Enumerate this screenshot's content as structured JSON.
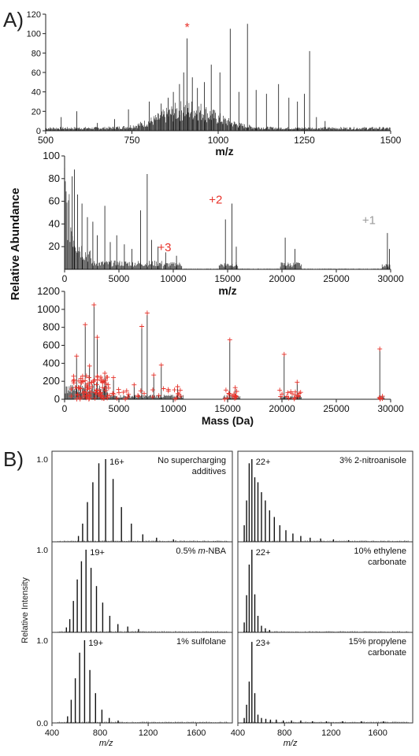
{
  "panels": {
    "A_label": "A)",
    "B_label": "B)"
  },
  "shared": {
    "ylabel_A": "Relative Abundance",
    "ylabel_B": "Relative Intensity"
  },
  "colors": {
    "trace": "#111111",
    "annotation_red": "#e8322a",
    "annotation_gray": "#999999",
    "cross_red": "#e8322a"
  },
  "chart_data": [
    {
      "id": "A1",
      "type": "line",
      "title": "",
      "xlabel": "m/z",
      "ylabel": "",
      "xlim": [
        500,
        1500
      ],
      "ylim": [
        0,
        120
      ],
      "xticks": [
        "500",
        "750",
        "1000",
        "1250",
        "1500"
      ],
      "yticks": [
        "0",
        "20",
        "40",
        "60",
        "80",
        "100",
        "120"
      ],
      "peaks": [
        [
          545,
          14
        ],
        [
          590,
          20
        ],
        [
          650,
          8
        ],
        [
          700,
          12
        ],
        [
          740,
          22
        ],
        [
          800,
          30
        ],
        [
          835,
          28
        ],
        [
          855,
          34
        ],
        [
          870,
          40
        ],
        [
          888,
          48
        ],
        [
          900,
          60
        ],
        [
          910,
          95
        ],
        [
          925,
          55
        ],
        [
          940,
          44
        ],
        [
          960,
          50
        ],
        [
          980,
          68
        ],
        [
          1005,
          60
        ],
        [
          1035,
          105
        ],
        [
          1060,
          40
        ],
        [
          1085,
          110
        ],
        [
          1110,
          42
        ],
        [
          1140,
          38
        ],
        [
          1175,
          48
        ],
        [
          1205,
          34
        ],
        [
          1230,
          30
        ],
        [
          1250,
          38
        ],
        [
          1265,
          82
        ],
        [
          1285,
          14
        ],
        [
          1310,
          10
        ]
      ],
      "annotations": [
        {
          "label": "*",
          "x": 910,
          "y": 102,
          "color": "red"
        }
      ]
    },
    {
      "id": "A2",
      "type": "line",
      "title": "",
      "xlabel": "m/z",
      "ylabel": "Relative Abundance",
      "xlim": [
        0,
        30000
      ],
      "ylim": [
        0,
        100
      ],
      "xticks": [
        "0",
        "5000",
        "10000",
        "15000",
        "20000",
        "25000",
        "30000"
      ],
      "yticks": [
        "20",
        "40",
        "60",
        "80",
        "100"
      ],
      "peaks": [
        [
          700,
          82
        ],
        [
          900,
          88
        ],
        [
          1200,
          66
        ],
        [
          1600,
          58
        ],
        [
          2100,
          46
        ],
        [
          2600,
          42
        ],
        [
          3000,
          30
        ],
        [
          3700,
          56
        ],
        [
          4200,
          24
        ],
        [
          4800,
          30
        ],
        [
          5500,
          22
        ],
        [
          6200,
          18
        ],
        [
          7000,
          52
        ],
        [
          7600,
          84
        ],
        [
          8000,
          26
        ],
        [
          8600,
          20
        ],
        [
          9300,
          15
        ],
        [
          10300,
          12
        ],
        [
          14800,
          44
        ],
        [
          15400,
          58
        ],
        [
          15800,
          20
        ],
        [
          20300,
          28
        ],
        [
          21200,
          18
        ],
        [
          29700,
          32
        ],
        [
          29900,
          18
        ]
      ],
      "annotations": [
        {
          "label": "+3",
          "x": 9200,
          "y": 16,
          "color": "red"
        },
        {
          "label": "+2",
          "x": 13900,
          "y": 58,
          "color": "red"
        },
        {
          "label": "+1",
          "x": 28000,
          "y": 40,
          "color": "gray"
        }
      ]
    },
    {
      "id": "A3",
      "type": "line",
      "title": "",
      "xlabel": "Mass (Da)",
      "ylabel": "",
      "xlim": [
        0,
        30000
      ],
      "ylim": [
        0,
        1200
      ],
      "xticks": [
        "0",
        "5000",
        "10000",
        "15000",
        "20000",
        "25000",
        "30000"
      ],
      "yticks": [
        "0",
        "200",
        "400",
        "600",
        "800",
        "1000",
        "1200"
      ],
      "peaks": [
        [
          1100,
          480
        ],
        [
          1500,
          230
        ],
        [
          1900,
          830
        ],
        [
          2300,
          370
        ],
        [
          2700,
          1050
        ],
        [
          3000,
          690
        ],
        [
          3700,
          290
        ],
        [
          4500,
          240
        ],
        [
          6400,
          160
        ],
        [
          7100,
          810
        ],
        [
          7600,
          960
        ],
        [
          8200,
          270
        ],
        [
          8900,
          380
        ],
        [
          10400,
          140
        ],
        [
          15200,
          660
        ],
        [
          15700,
          130
        ],
        [
          20200,
          500
        ],
        [
          21400,
          190
        ],
        [
          29000,
          560
        ]
      ],
      "annotations": []
    },
    {
      "id": "B1",
      "type": "bar",
      "xlabel": "",
      "ylabel": "",
      "xlim": [
        400,
        1900
      ],
      "ylim": [
        0,
        1.0
      ],
      "yticks": [
        "1.0"
      ],
      "charge_label": "16+",
      "condition": [
        "No supercharging",
        "additives"
      ],
      "peaks": [
        [
          620,
          0.07
        ],
        [
          655,
          0.22
        ],
        [
          695,
          0.48
        ],
        [
          740,
          0.72
        ],
        [
          790,
          0.95
        ],
        [
          846,
          1.0
        ],
        [
          908,
          0.76
        ],
        [
          978,
          0.42
        ],
        [
          1060,
          0.22
        ],
        [
          1155,
          0.09
        ],
        [
          1270,
          0.05
        ],
        [
          1410,
          0.03
        ]
      ]
    },
    {
      "id": "B2",
      "type": "bar",
      "xlabel": "",
      "ylabel": "",
      "xlim": [
        400,
        1900
      ],
      "ylim": [
        0,
        1.0
      ],
      "yticks": [
        "1.0"
      ],
      "charge_label": "19+",
      "condition_prefix": "0.5% ",
      "condition_italic": "m",
      "condition_suffix": "-NBA",
      "peaks": [
        [
          520,
          0.06
        ],
        [
          548,
          0.16
        ],
        [
          578,
          0.38
        ],
        [
          610,
          0.64
        ],
        [
          645,
          0.86
        ],
        [
          683,
          1.0
        ],
        [
          725,
          0.78
        ],
        [
          770,
          0.56
        ],
        [
          822,
          0.36
        ],
        [
          881,
          0.2
        ],
        [
          948,
          0.1
        ],
        [
          1030,
          0.07
        ],
        [
          1120,
          0.04
        ]
      ]
    },
    {
      "id": "B3",
      "type": "bar",
      "xlabel": "m/z",
      "ylabel": "",
      "xlim": [
        400,
        1900
      ],
      "ylim": [
        0,
        1.0
      ],
      "yticks": [
        "1.0",
        "0.0"
      ],
      "xticks": [
        "400",
        "800",
        "1200",
        "1600"
      ],
      "charge_label": "19+",
      "condition": [
        "1% sulfolane"
      ],
      "peaks": [
        [
          530,
          0.08
        ],
        [
          560,
          0.28
        ],
        [
          594,
          0.54
        ],
        [
          630,
          0.85
        ],
        [
          671,
          1.0
        ],
        [
          715,
          0.64
        ],
        [
          762,
          0.36
        ],
        [
          815,
          0.16
        ],
        [
          876,
          0.06
        ],
        [
          950,
          0.03
        ]
      ]
    },
    {
      "id": "B4",
      "type": "bar",
      "xlabel": "",
      "ylabel": "",
      "xlim": [
        400,
        1900
      ],
      "ylim": [
        0,
        1.0
      ],
      "charge_label": "22+",
      "condition": [
        "3% 2-nitroanisole"
      ],
      "peaks": [
        [
          455,
          0.2
        ],
        [
          475,
          0.5
        ],
        [
          497,
          0.95
        ],
        [
          520,
          1.0
        ],
        [
          545,
          0.78
        ],
        [
          572,
          0.72
        ],
        [
          603,
          0.6
        ],
        [
          636,
          0.5
        ],
        [
          672,
          0.38
        ],
        [
          713,
          0.3
        ],
        [
          760,
          0.2
        ],
        [
          812,
          0.14
        ],
        [
          872,
          0.1
        ],
        [
          940,
          0.07
        ],
        [
          1020,
          0.05
        ],
        [
          1110,
          0.04
        ],
        [
          1220,
          0.03
        ],
        [
          1350,
          0.02
        ]
      ]
    },
    {
      "id": "B5",
      "type": "bar",
      "xlabel": "",
      "ylabel": "",
      "xlim": [
        400,
        1900
      ],
      "ylim": [
        0,
        1.0
      ],
      "charge_label": "22+",
      "condition": [
        "10% ethylene",
        "carbonate"
      ],
      "peaks": [
        [
          455,
          0.12
        ],
        [
          475,
          0.45
        ],
        [
          497,
          0.82
        ],
        [
          520,
          1.0
        ],
        [
          545,
          0.46
        ],
        [
          572,
          0.2
        ],
        [
          603,
          0.08
        ],
        [
          636,
          0.05
        ],
        [
          672,
          0.03
        ]
      ]
    },
    {
      "id": "B6",
      "type": "bar",
      "xlabel": "m/z",
      "ylabel": "",
      "xlim": [
        400,
        1900
      ],
      "ylim": [
        0,
        1.0
      ],
      "xticks": [
        "400",
        "800",
        "1200",
        "1600"
      ],
      "charge_label": "23+",
      "condition": [
        "15% propylene",
        "carbonate"
      ],
      "peaks": [
        [
          455,
          0.06
        ],
        [
          475,
          0.22
        ],
        [
          497,
          0.5
        ],
        [
          520,
          0.98
        ],
        [
          545,
          0.36
        ],
        [
          572,
          0.1
        ],
        [
          603,
          0.06
        ],
        [
          640,
          0.05
        ],
        [
          680,
          0.04
        ],
        [
          730,
          0.04
        ],
        [
          790,
          0.03
        ],
        [
          860,
          0.03
        ],
        [
          940,
          0.03
        ],
        [
          1040,
          0.02
        ],
        [
          1160,
          0.02
        ],
        [
          1300,
          0.02
        ],
        [
          1460,
          0.02
        ],
        [
          1650,
          0.02
        ]
      ]
    }
  ]
}
